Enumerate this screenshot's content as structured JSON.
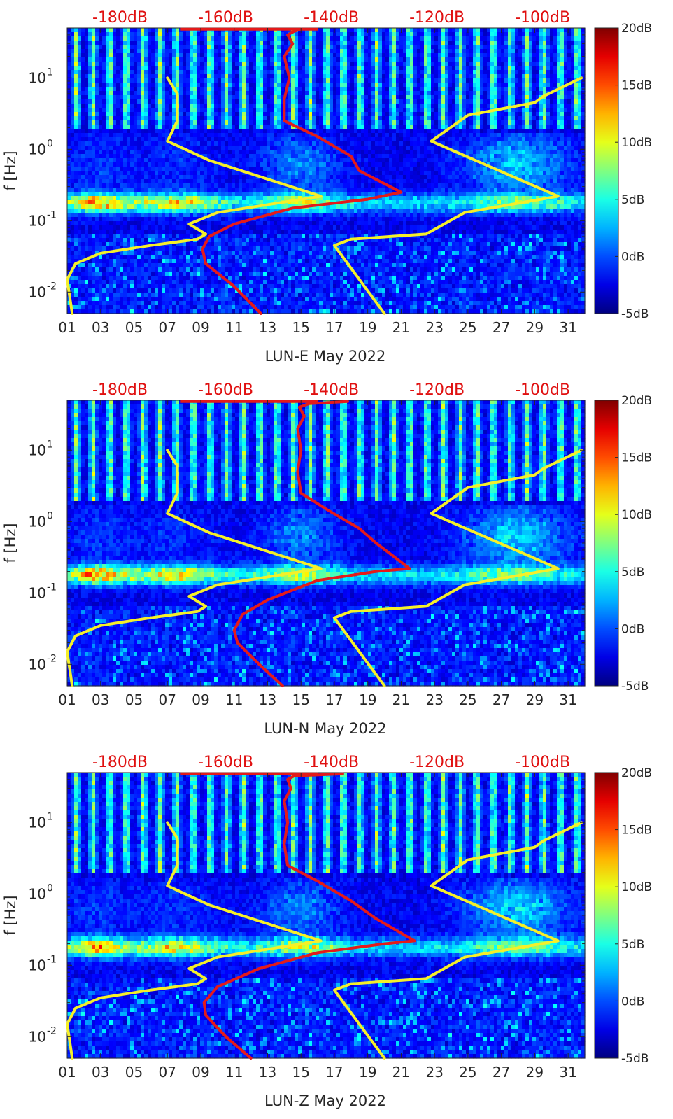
{
  "figure": {
    "title": "",
    "spectrogram_colormap": "jet"
  },
  "colors": {
    "sat_line": "#f5ef2a",
    "red_line": "#e41a1a",
    "top_label": "#e01010"
  },
  "chart_data": [
    {
      "type": "heatmap",
      "panel_id": "LUN-E",
      "xlabel": "LUN-E May 2022",
      "ylabel": "f [Hz]",
      "x_ticks": [
        "01",
        "03",
        "05",
        "07",
        "09",
        "11",
        "13",
        "15",
        "17",
        "19",
        "21",
        "23",
        "25",
        "27",
        "29",
        "31"
      ],
      "xlim": [
        1,
        32
      ],
      "y_scale": "log",
      "ylim": [
        0.005,
        50
      ],
      "y_ticks": [
        {
          "v": 0.01,
          "b": "10",
          "e": "-2"
        },
        {
          "v": 0.1,
          "b": "10",
          "e": "-1"
        },
        {
          "v": 1,
          "b": "10",
          "e": "0"
        },
        {
          "v": 10,
          "b": "10",
          "e": "1"
        }
      ],
      "top_axis_labels": [
        "-180dB",
        "-160dB",
        "-140dB",
        "-120dB",
        "-100dB"
      ],
      "top_axis_values": [
        -180,
        -160,
        -140,
        -120,
        -100
      ],
      "top_axis_range": [
        -190,
        -92
      ],
      "colorbar": {
        "min": -5,
        "max": 20,
        "ticks": [
          "20dB",
          "15dB",
          "10dB",
          "5dB",
          "0dB",
          "-5dB"
        ],
        "tick_values": [
          20,
          15,
          10,
          5,
          0,
          -5
        ]
      },
      "yellow_line": {
        "x": [
          1.3,
          1.0,
          1.5,
          3.0,
          6.0,
          8.8,
          9.3,
          8.3,
          10.0,
          16.2,
          9.5,
          7.0,
          7.6,
          7.6,
          7.0
        ],
        "f": [
          0.005,
          0.015,
          0.025,
          0.035,
          0.045,
          0.055,
          0.065,
          0.09,
          0.13,
          0.22,
          0.7,
          1.3,
          2.5,
          6,
          10
        ]
      },
      "yellow_line_2": {
        "x": [
          20.0,
          17.0,
          18.0,
          22.5,
          24.8,
          30.4,
          22.8,
          25.0,
          29.0,
          29.5,
          31.8
        ],
        "f": [
          0.005,
          0.045,
          0.055,
          0.065,
          0.13,
          0.22,
          1.3,
          3.0,
          4.5,
          5.5,
          10
        ]
      },
      "red_line": {
        "x": [
          12.6,
          11.0,
          9.3,
          9.1,
          9.5,
          11.0,
          14.5,
          19.0,
          21.0,
          18.5,
          18.0,
          16.0,
          14.0,
          14.0,
          14.3,
          14.0,
          14.5,
          14.2,
          14.6,
          15.0
        ],
        "f": [
          0.005,
          0.012,
          0.025,
          0.04,
          0.06,
          0.09,
          0.15,
          0.2,
          0.25,
          0.5,
          0.8,
          1.5,
          2.5,
          5,
          10,
          20,
          30,
          40,
          45,
          48
        ]
      }
    },
    {
      "type": "heatmap",
      "panel_id": "LUN-N",
      "xlabel": "LUN-N May 2022",
      "ylabel": "f [Hz]",
      "x_ticks": [
        "01",
        "03",
        "05",
        "07",
        "09",
        "11",
        "13",
        "15",
        "17",
        "19",
        "21",
        "23",
        "25",
        "27",
        "29",
        "31"
      ],
      "xlim": [
        1,
        32
      ],
      "y_scale": "log",
      "ylim": [
        0.005,
        50
      ],
      "y_ticks": [
        {
          "v": 0.01,
          "b": "10",
          "e": "-2"
        },
        {
          "v": 0.1,
          "b": "10",
          "e": "-1"
        },
        {
          "v": 1,
          "b": "10",
          "e": "0"
        },
        {
          "v": 10,
          "b": "10",
          "e": "1"
        }
      ],
      "top_axis_labels": [
        "-180dB",
        "-160dB",
        "-140dB",
        "-120dB",
        "-100dB"
      ],
      "top_axis_values": [
        -180,
        -160,
        -140,
        -120,
        -100
      ],
      "top_axis_range": [
        -190,
        -92
      ],
      "colorbar": {
        "min": -5,
        "max": 20,
        "ticks": [
          "20dB",
          "15dB",
          "10dB",
          "5dB",
          "0dB",
          "-5dB"
        ],
        "tick_values": [
          20,
          15,
          10,
          5,
          0,
          -5
        ]
      },
      "yellow_line": {
        "x": [
          1.3,
          1.0,
          1.5,
          3.0,
          6.0,
          8.8,
          9.3,
          8.3,
          10.0,
          16.2,
          9.5,
          7.0,
          7.6,
          7.6,
          7.0
        ],
        "f": [
          0.005,
          0.015,
          0.025,
          0.035,
          0.045,
          0.055,
          0.065,
          0.09,
          0.13,
          0.22,
          0.7,
          1.3,
          2.5,
          6,
          10
        ]
      },
      "yellow_line_2": {
        "x": [
          20.0,
          17.0,
          18.0,
          22.5,
          24.8,
          30.4,
          22.8,
          25.0,
          29.0,
          29.5,
          31.8
        ],
        "f": [
          0.005,
          0.045,
          0.055,
          0.065,
          0.13,
          0.22,
          1.3,
          3.0,
          4.5,
          5.5,
          10
        ]
      },
      "red_line": {
        "x": [
          13.9,
          12.5,
          11.2,
          11.0,
          11.5,
          13.0,
          16.0,
          19.5,
          21.5,
          19.5,
          18.5,
          16.5,
          15.0,
          14.8,
          15.0,
          14.8,
          15.2,
          14.9,
          15.5,
          17.8
        ],
        "f": [
          0.005,
          0.01,
          0.02,
          0.03,
          0.05,
          0.08,
          0.15,
          0.2,
          0.22,
          0.5,
          0.8,
          1.5,
          2.5,
          5,
          10,
          20,
          30,
          40,
          45,
          48
        ]
      }
    },
    {
      "type": "heatmap",
      "panel_id": "LUN-Z",
      "xlabel": "LUN-Z May 2022",
      "ylabel": "f [Hz]",
      "x_ticks": [
        "01",
        "03",
        "05",
        "07",
        "09",
        "11",
        "13",
        "15",
        "17",
        "19",
        "21",
        "23",
        "25",
        "27",
        "29",
        "31"
      ],
      "xlim": [
        1,
        32
      ],
      "y_scale": "log",
      "ylim": [
        0.005,
        50
      ],
      "y_ticks": [
        {
          "v": 0.01,
          "b": "10",
          "e": "-2"
        },
        {
          "v": 0.1,
          "b": "10",
          "e": "-1"
        },
        {
          "v": 1,
          "b": "10",
          "e": "0"
        },
        {
          "v": 10,
          "b": "10",
          "e": "1"
        }
      ],
      "top_axis_labels": [
        "-180dB",
        "-160dB",
        "-140dB",
        "-120dB",
        "-100dB"
      ],
      "top_axis_values": [
        -180,
        -160,
        -140,
        -120,
        -100
      ],
      "top_axis_range": [
        -190,
        -92
      ],
      "colorbar": {
        "min": -5,
        "max": 20,
        "ticks": [
          "20dB",
          "15dB",
          "10dB",
          "5dB",
          "0dB",
          "-5dB"
        ],
        "tick_values": [
          20,
          15,
          10,
          5,
          0,
          -5
        ]
      },
      "yellow_line": {
        "x": [
          1.3,
          1.0,
          1.5,
          3.0,
          6.0,
          8.8,
          9.3,
          8.3,
          10.0,
          16.2,
          9.5,
          7.0,
          7.6,
          7.6,
          7.0
        ],
        "f": [
          0.005,
          0.015,
          0.025,
          0.035,
          0.045,
          0.055,
          0.065,
          0.09,
          0.13,
          0.22,
          0.7,
          1.3,
          2.5,
          6,
          10
        ]
      },
      "yellow_line_2": {
        "x": [
          20.0,
          17.0,
          18.0,
          22.5,
          24.8,
          30.4,
          22.8,
          25.0,
          29.0,
          29.5,
          31.8
        ],
        "f": [
          0.005,
          0.045,
          0.055,
          0.065,
          0.13,
          0.22,
          1.3,
          3.0,
          4.5,
          5.5,
          10
        ]
      },
      "red_line": {
        "x": [
          12.0,
          10.5,
          9.3,
          9.2,
          10.0,
          12.5,
          16.0,
          20.0,
          21.8,
          19.5,
          18.0,
          16.0,
          14.2,
          14.0,
          14.2,
          14.0,
          14.4,
          14.2,
          14.6,
          17.5
        ],
        "f": [
          0.005,
          0.01,
          0.02,
          0.03,
          0.05,
          0.09,
          0.15,
          0.2,
          0.22,
          0.45,
          0.8,
          1.5,
          2.5,
          5,
          10,
          20,
          30,
          40,
          45,
          48
        ]
      }
    }
  ]
}
